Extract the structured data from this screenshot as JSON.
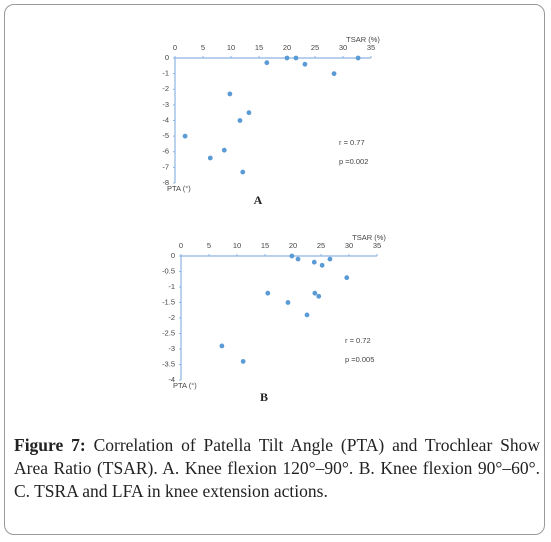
{
  "chart_data": [
    {
      "type": "scatter",
      "panel_label": "A",
      "x_label": "TSAR (%)",
      "y_label": "PTA (°)",
      "annotations": [
        "r = 0.77",
        "p =0.002"
      ],
      "color": "#5b9bd5",
      "xlim": [
        0,
        35
      ],
      "xticks": [
        0,
        5,
        10,
        15,
        20,
        25,
        30,
        35
      ],
      "ylim": [
        -8,
        0
      ],
      "yticks": [
        0,
        -1,
        -2,
        -3,
        -4,
        -5,
        -6,
        -7,
        -8
      ],
      "series": [
        {
          "x": [
            1.8,
            6.3,
            8.8,
            9.8,
            11.6,
            13.2,
            12.1,
            16.4,
            20,
            21.6,
            23.2,
            28.4,
            32.7
          ],
          "values": [
            -5.0,
            -6.4,
            -5.9,
            -2.3,
            -4.0,
            -3.5,
            -7.3,
            -0.3,
            0,
            0,
            -0.4,
            -1.0,
            0
          ]
        }
      ]
    },
    {
      "type": "scatter",
      "panel_label": "B",
      "x_label": "TSAR (%)",
      "y_label": "PTA (°)",
      "annotations": [
        "r = 0.72",
        "p =0.005"
      ],
      "color": "#5b9bd5",
      "xlim": [
        0,
        35
      ],
      "xticks": [
        0,
        5,
        10,
        15,
        20,
        25,
        30,
        35
      ],
      "ylim": [
        -4,
        0
      ],
      "yticks": [
        0,
        -0.5,
        -1,
        -1.5,
        -2,
        -2.5,
        -3,
        -3.5,
        -4
      ],
      "series": [
        {
          "x": [
            19.8,
            20.9,
            23.8,
            25.2,
            26.6,
            29.6,
            15.5,
            19.1,
            23.9,
            24.6,
            22.5,
            7.3,
            11.1
          ],
          "values": [
            0,
            -0.1,
            -0.2,
            -0.3,
            -0.1,
            -0.7,
            -1.2,
            -1.5,
            -1.2,
            -1.3,
            -1.9,
            -2.9,
            -3.4
          ]
        }
      ]
    }
  ],
  "caption": {
    "label": "Figure 7:",
    "text": "Correlation of Patella Tilt Angle (PTA) and Trochlear Show Area Ratio (TSAR). A. Knee flexion 120°–90°. B. Knee flexion 90°–60°. C. TSRA and LFA in knee extension actions."
  }
}
